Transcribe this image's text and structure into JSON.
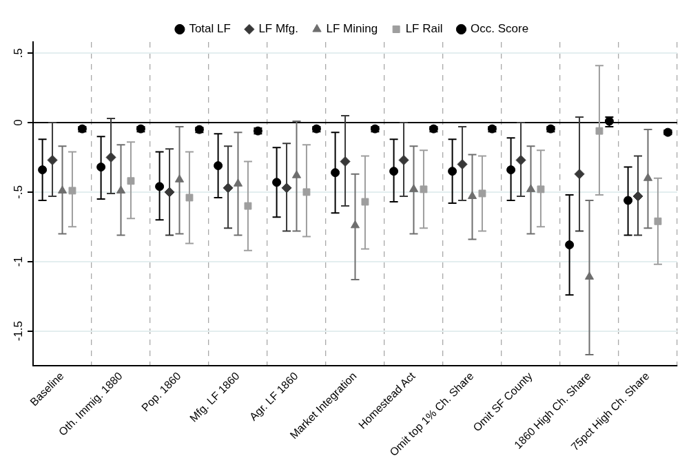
{
  "chart_data": {
    "type": "scatter",
    "categories": [
      "Baseline",
      "Oth. Immig. 1880",
      "Pop. 1860",
      "Mfg. LF 1860",
      "Agr. LF 1860",
      "Market Integration",
      "Homestead Act",
      "Omit top 1% Ch. Share",
      "Omit SF County",
      "1860 High Ch. Share",
      "75pct High Ch. Share"
    ],
    "series": [
      {
        "name": "Total LF",
        "color": "#000000",
        "marker": "circle",
        "values": [
          -0.34,
          -0.32,
          -0.46,
          -0.31,
          -0.43,
          -0.36,
          -0.35,
          -0.35,
          -0.34,
          -0.88,
          -0.56
        ],
        "errors": [
          [
            -0.56,
            -0.12
          ],
          [
            -0.55,
            -0.1
          ],
          [
            -0.7,
            -0.21
          ],
          [
            -0.54,
            -0.08
          ],
          [
            -0.68,
            -0.18
          ],
          [
            -0.65,
            -0.07
          ],
          [
            -0.57,
            -0.12
          ],
          [
            -0.58,
            -0.12
          ],
          [
            -0.56,
            -0.11
          ],
          [
            -1.24,
            -0.52
          ],
          [
            -0.81,
            -0.32
          ]
        ]
      },
      {
        "name": "LF Mfg.",
        "color": "#383838",
        "marker": "diamond",
        "values": [
          -0.27,
          -0.25,
          -0.5,
          -0.47,
          -0.47,
          -0.28,
          -0.27,
          -0.3,
          -0.27,
          -0.37,
          -0.53
        ],
        "errors": [
          [
            -0.53,
            0
          ],
          [
            -0.51,
            0.03
          ],
          [
            -0.81,
            -0.19
          ],
          [
            -0.76,
            -0.17
          ],
          [
            -0.78,
            -0.15
          ],
          [
            -0.6,
            0.05
          ],
          [
            -0.53,
            0
          ],
          [
            -0.56,
            -0.03
          ],
          [
            -0.53,
            0
          ],
          [
            -0.78,
            0.04
          ],
          [
            -0.81,
            -0.24
          ]
        ]
      },
      {
        "name": "LF Mining",
        "color": "#6e6e6e",
        "marker": "triangle",
        "values": [
          -0.49,
          -0.49,
          -0.41,
          -0.44,
          -0.38,
          -0.74,
          -0.48,
          -0.53,
          -0.48,
          -1.11,
          -0.4
        ],
        "errors": [
          [
            -0.8,
            -0.17
          ],
          [
            -0.81,
            -0.16
          ],
          [
            -0.8,
            -0.03
          ],
          [
            -0.81,
            -0.07
          ],
          [
            -0.78,
            0.01
          ],
          [
            -1.13,
            -0.37
          ],
          [
            -0.8,
            -0.17
          ],
          [
            -0.84,
            -0.23
          ],
          [
            -0.8,
            -0.17
          ],
          [
            -1.67,
            -0.56
          ],
          [
            -0.76,
            -0.05
          ]
        ]
      },
      {
        "name": "LF Rail",
        "color": "#9e9e9e",
        "marker": "square",
        "values": [
          -0.49,
          -0.42,
          -0.54,
          -0.6,
          -0.5,
          -0.57,
          -0.48,
          -0.51,
          -0.48,
          -0.06,
          -0.71
        ],
        "errors": [
          [
            -0.75,
            -0.21
          ],
          [
            -0.69,
            -0.14
          ],
          [
            -0.87,
            -0.21
          ],
          [
            -0.92,
            -0.28
          ],
          [
            -0.82,
            -0.16
          ],
          [
            -0.91,
            -0.24
          ],
          [
            -0.76,
            -0.2
          ],
          [
            -0.78,
            -0.24
          ],
          [
            -0.75,
            -0.2
          ],
          [
            -0.52,
            0.41
          ],
          [
            -1.02,
            -0.4
          ]
        ]
      },
      {
        "name": "Occ. Score",
        "color": "#000000",
        "marker": "circle",
        "values": [
          -0.045,
          -0.045,
          -0.05,
          -0.06,
          -0.045,
          -0.045,
          -0.045,
          -0.045,
          -0.045,
          0.01,
          -0.07
        ],
        "errors": [
          [
            -0.065,
            -0.03
          ],
          [
            -0.065,
            -0.03
          ],
          [
            -0.07,
            -0.035
          ],
          [
            -0.08,
            -0.04
          ],
          [
            -0.065,
            -0.03
          ],
          [
            -0.065,
            -0.03
          ],
          [
            -0.065,
            -0.03
          ],
          [
            -0.065,
            -0.03
          ],
          [
            -0.065,
            -0.03
          ],
          [
            -0.03,
            0.04
          ],
          [
            -0.085,
            -0.055
          ]
        ]
      }
    ],
    "ylim": [
      -1.75,
      0.58
    ],
    "yticks": [
      {
        "value": 0.5,
        "label": ".5"
      },
      0,
      {
        "value": -0.5,
        "label": "-.5"
      },
      -1,
      {
        "value": -1.5,
        "label": "-1.5"
      }
    ],
    "ref_lines": [
      {
        "axis": "y",
        "value": 0,
        "color": "#000000"
      }
    ],
    "grid": true,
    "legend": "top"
  }
}
